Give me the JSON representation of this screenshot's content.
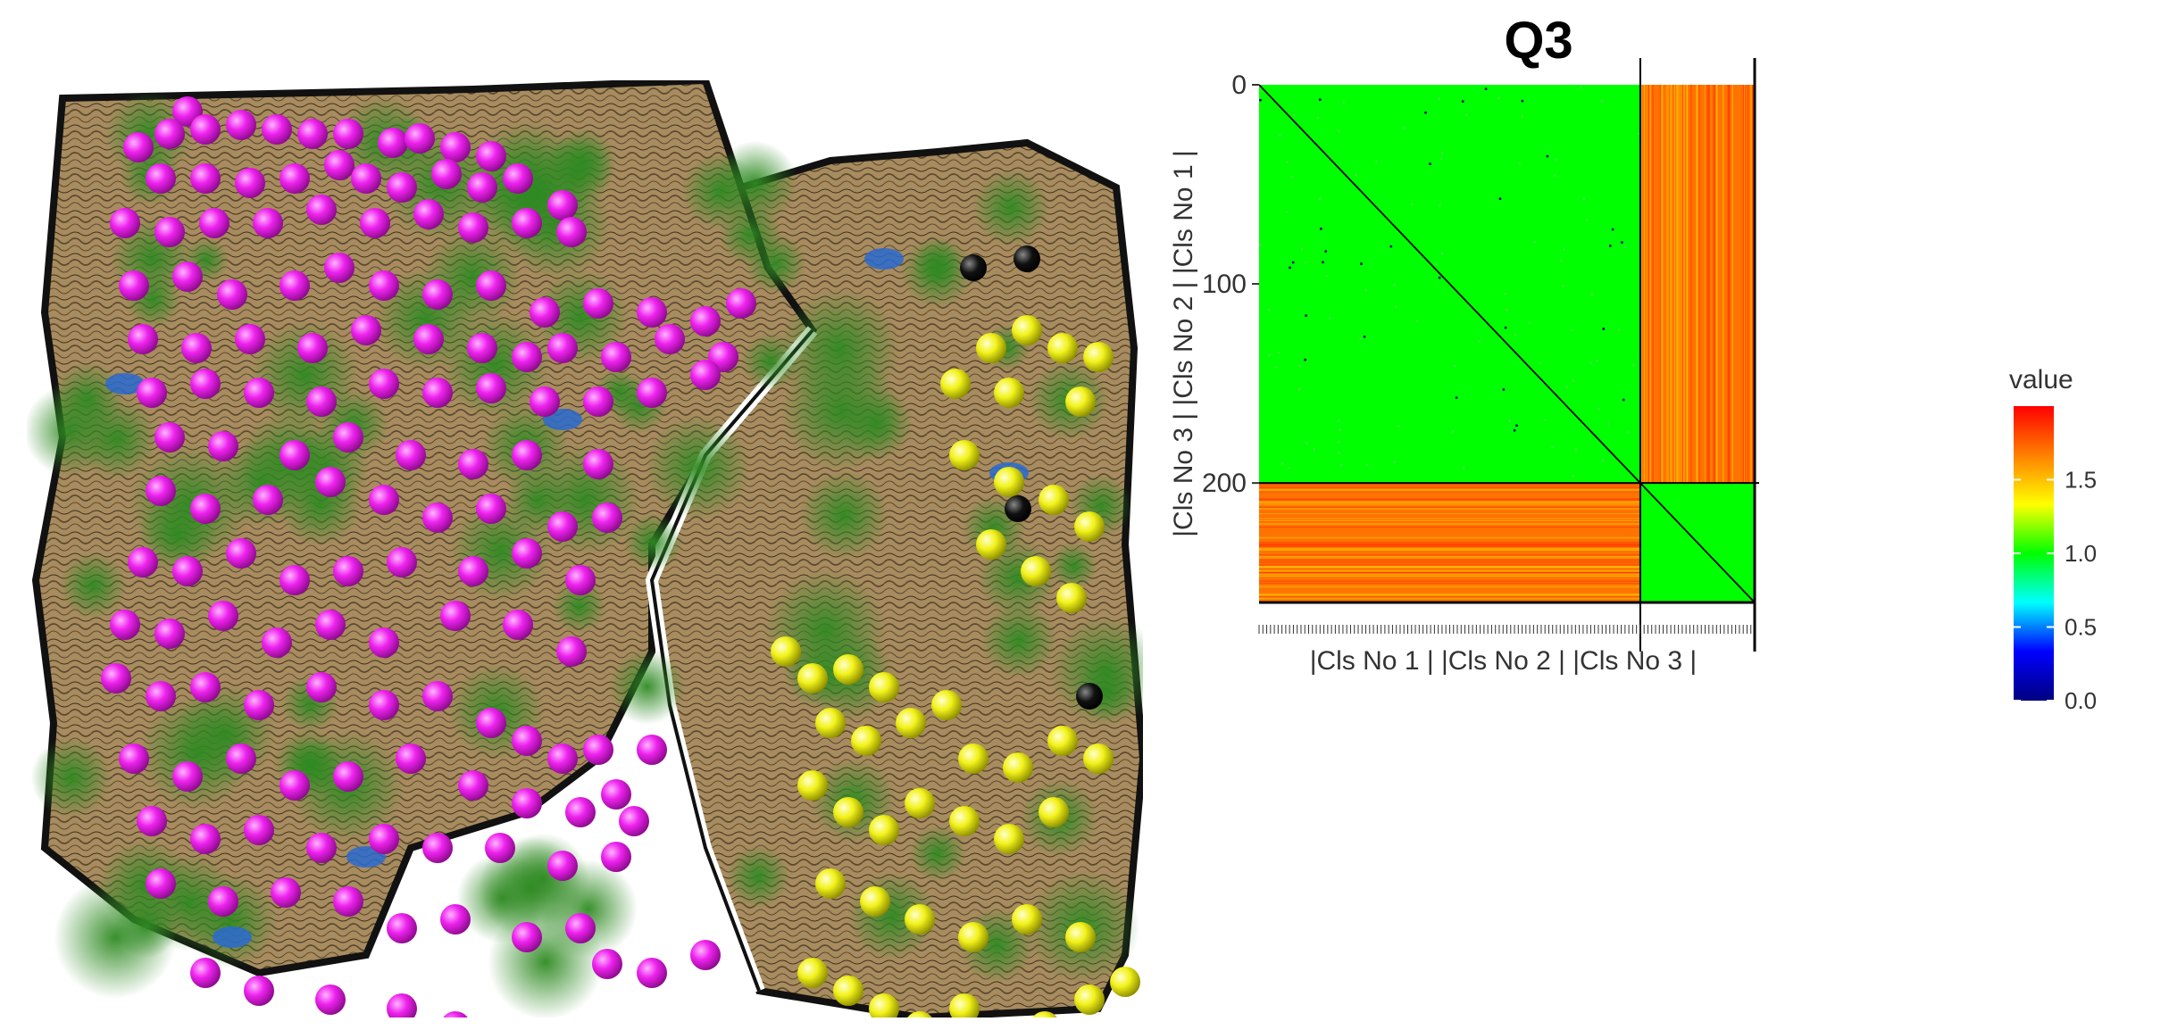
{
  "colors": {
    "terrain": "#a88b5e",
    "terrain_dark": "#7a6240",
    "vegetation": "#3e8f2c",
    "water": "#2a6ad0",
    "cluster_1": "#ee22ee",
    "cluster_2": "#f2f21a",
    "outlier": "#111111"
  },
  "landscape": {
    "cluster_points": {
      "magenta": [
        [
          180,
          35
        ],
        [
          125,
          75
        ],
        [
          160,
          60
        ],
        [
          200,
          55
        ],
        [
          240,
          50
        ],
        [
          280,
          55
        ],
        [
          320,
          60
        ],
        [
          360,
          60
        ],
        [
          410,
          70
        ],
        [
          440,
          65
        ],
        [
          480,
          75
        ],
        [
          520,
          85
        ],
        [
          150,
          110
        ],
        [
          200,
          110
        ],
        [
          250,
          115
        ],
        [
          300,
          110
        ],
        [
          350,
          95
        ],
        [
          380,
          110
        ],
        [
          420,
          120
        ],
        [
          470,
          105
        ],
        [
          510,
          120
        ],
        [
          550,
          110
        ],
        [
          600,
          140
        ],
        [
          110,
          160
        ],
        [
          160,
          170
        ],
        [
          210,
          160
        ],
        [
          270,
          160
        ],
        [
          330,
          145
        ],
        [
          390,
          160
        ],
        [
          450,
          150
        ],
        [
          500,
          165
        ],
        [
          560,
          160
        ],
        [
          610,
          170
        ],
        [
          120,
          230
        ],
        [
          180,
          220
        ],
        [
          230,
          240
        ],
        [
          300,
          230
        ],
        [
          350,
          210
        ],
        [
          400,
          230
        ],
        [
          460,
          240
        ],
        [
          520,
          230
        ],
        [
          580,
          260
        ],
        [
          640,
          250
        ],
        [
          700,
          260
        ],
        [
          760,
          270
        ],
        [
          800,
          250
        ],
        [
          130,
          290
        ],
        [
          190,
          300
        ],
        [
          250,
          290
        ],
        [
          320,
          300
        ],
        [
          380,
          280
        ],
        [
          450,
          290
        ],
        [
          510,
          300
        ],
        [
          560,
          310
        ],
        [
          600,
          300
        ],
        [
          660,
          310
        ],
        [
          720,
          290
        ],
        [
          780,
          310
        ],
        [
          140,
          350
        ],
        [
          200,
          340
        ],
        [
          260,
          350
        ],
        [
          330,
          360
        ],
        [
          400,
          340
        ],
        [
          460,
          350
        ],
        [
          520,
          345
        ],
        [
          580,
          360
        ],
        [
          640,
          360
        ],
        [
          700,
          350
        ],
        [
          760,
          330
        ],
        [
          160,
          400
        ],
        [
          220,
          410
        ],
        [
          300,
          420
        ],
        [
          360,
          400
        ],
        [
          430,
          420
        ],
        [
          500,
          430
        ],
        [
          560,
          420
        ],
        [
          640,
          430
        ],
        [
          150,
          460
        ],
        [
          200,
          480
        ],
        [
          270,
          470
        ],
        [
          340,
          450
        ],
        [
          400,
          470
        ],
        [
          460,
          490
        ],
        [
          520,
          480
        ],
        [
          600,
          500
        ],
        [
          650,
          490
        ],
        [
          130,
          540
        ],
        [
          180,
          550
        ],
        [
          240,
          530
        ],
        [
          300,
          560
        ],
        [
          360,
          550
        ],
        [
          420,
          540
        ],
        [
          500,
          550
        ],
        [
          560,
          530
        ],
        [
          620,
          560
        ],
        [
          110,
          610
        ],
        [
          160,
          620
        ],
        [
          220,
          600
        ],
        [
          280,
          630
        ],
        [
          340,
          610
        ],
        [
          400,
          630
        ],
        [
          480,
          600
        ],
        [
          550,
          610
        ],
        [
          610,
          640
        ],
        [
          100,
          670
        ],
        [
          150,
          690
        ],
        [
          200,
          680
        ],
        [
          260,
          700
        ],
        [
          330,
          680
        ],
        [
          400,
          700
        ],
        [
          460,
          690
        ],
        [
          520,
          720
        ],
        [
          560,
          740
        ],
        [
          600,
          760
        ],
        [
          640,
          750
        ],
        [
          700,
          750
        ],
        [
          660,
          800
        ],
        [
          120,
          760
        ],
        [
          180,
          780
        ],
        [
          240,
          760
        ],
        [
          300,
          790
        ],
        [
          360,
          780
        ],
        [
          430,
          760
        ],
        [
          500,
          790
        ],
        [
          560,
          810
        ],
        [
          620,
          820
        ],
        [
          680,
          830
        ],
        [
          140,
          830
        ],
        [
          200,
          850
        ],
        [
          260,
          840
        ],
        [
          330,
          860
        ],
        [
          400,
          850
        ],
        [
          460,
          860
        ],
        [
          530,
          860
        ],
        [
          600,
          880
        ],
        [
          660,
          870
        ],
        [
          150,
          900
        ],
        [
          220,
          920
        ],
        [
          290,
          910
        ],
        [
          360,
          920
        ],
        [
          420,
          950
        ],
        [
          480,
          940
        ],
        [
          560,
          960
        ],
        [
          620,
          950
        ],
        [
          650,
          990
        ],
        [
          700,
          1000
        ],
        [
          760,
          980
        ],
        [
          200,
          1000
        ],
        [
          260,
          1020
        ],
        [
          340,
          1030
        ],
        [
          420,
          1040
        ],
        [
          480,
          1060
        ]
      ],
      "yellow": [
        [
          1080,
          300
        ],
        [
          1120,
          280
        ],
        [
          1160,
          300
        ],
        [
          1200,
          310
        ],
        [
          1040,
          340
        ],
        [
          1100,
          350
        ],
        [
          1180,
          360
        ],
        [
          1050,
          420
        ],
        [
          1100,
          450
        ],
        [
          1150,
          470
        ],
        [
          1190,
          500
        ],
        [
          1080,
          520
        ],
        [
          1130,
          550
        ],
        [
          1170,
          580
        ],
        [
          850,
          640
        ],
        [
          880,
          670
        ],
        [
          920,
          660
        ],
        [
          960,
          680
        ],
        [
          900,
          720
        ],
        [
          940,
          740
        ],
        [
          990,
          720
        ],
        [
          1030,
          700
        ],
        [
          1060,
          760
        ],
        [
          1110,
          770
        ],
        [
          1160,
          740
        ],
        [
          1200,
          760
        ],
        [
          880,
          790
        ],
        [
          920,
          820
        ],
        [
          960,
          840
        ],
        [
          1000,
          810
        ],
        [
          1050,
          830
        ],
        [
          1100,
          850
        ],
        [
          1150,
          820
        ],
        [
          900,
          900
        ],
        [
          950,
          920
        ],
        [
          1000,
          940
        ],
        [
          1060,
          960
        ],
        [
          1120,
          940
        ],
        [
          1180,
          960
        ],
        [
          880,
          1000
        ],
        [
          920,
          1020
        ],
        [
          960,
          1040
        ],
        [
          1000,
          1060
        ],
        [
          1050,
          1040
        ],
        [
          1090,
          1070
        ],
        [
          1140,
          1060
        ],
        [
          1190,
          1030
        ],
        [
          1230,
          1010
        ]
      ],
      "outliers": [
        [
          1060,
          210
        ],
        [
          1120,
          200
        ],
        [
          1110,
          480
        ],
        [
          1190,
          690
        ]
      ]
    }
  },
  "chart_data": {
    "type": "heatmap",
    "title": "Q3",
    "xlabel": "|Cls No 1 | |Cls No 2 | |Cls No 3 |",
    "ylabel": "|Cls No 3 | |Cls No 2 | |Cls No 1 |",
    "y_ticks": [
      "0",
      "100",
      "200"
    ],
    "y_tick_values": [
      0,
      100,
      200
    ],
    "n": 260,
    "cluster_boundaries": [
      200,
      260
    ],
    "block_values": {
      "within_cluster_1": 1.0,
      "within_cluster_2": 1.0,
      "between_clusters": 1.7,
      "diagonal": 0.0
    },
    "legend": {
      "title": "value",
      "ticks": [
        "0.0",
        "0.5",
        "1.0",
        "1.5"
      ],
      "tick_values": [
        0.0,
        0.5,
        1.0,
        1.5
      ],
      "range": [
        0.0,
        2.0
      ],
      "gradient": [
        "#000080",
        "#0000ff",
        "#00ffff",
        "#00ff00",
        "#ffff00",
        "#ff8000",
        "#ff0000"
      ]
    }
  }
}
